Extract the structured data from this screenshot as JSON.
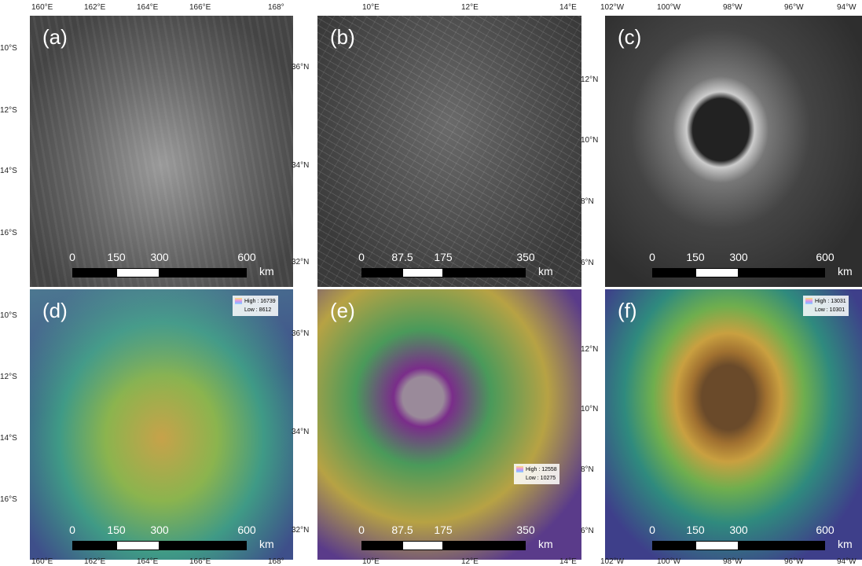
{
  "columns": [
    {
      "lon_ticks": [
        "160°E",
        "162°E",
        "164°E",
        "166°E",
        "168°"
      ],
      "lat_ticks": [
        "10°S",
        "12°S",
        "14°S",
        "16°S"
      ],
      "scale": {
        "ticks": [
          0,
          150,
          300,
          600
        ],
        "unit": "km"
      }
    },
    {
      "lon_ticks": [
        "10°E",
        "12°E",
        "14°E"
      ],
      "lat_ticks": [
        "36°N",
        "34°N",
        "32°N"
      ],
      "scale": {
        "ticks": [
          0,
          87.5,
          175,
          350
        ],
        "unit": "km"
      }
    },
    {
      "lon_ticks": [
        "102°W",
        "100°W",
        "98°W",
        "96°W",
        "94°W"
      ],
      "lat_ticks": [
        "12°N",
        "10°N",
        "8°N",
        "6°N"
      ],
      "scale": {
        "ticks": [
          0,
          150,
          300,
          600
        ],
        "unit": "km"
      }
    }
  ],
  "panels": [
    {
      "label": "(a)"
    },
    {
      "label": "(b)"
    },
    {
      "label": "(c)"
    },
    {
      "label": "(d)",
      "legend": {
        "high": "High : 16739",
        "low": "Low : 8612"
      }
    },
    {
      "label": "(e)",
      "legend": {
        "high": "High : 12558",
        "low": "Low : 10275"
      }
    },
    {
      "label": "(f)",
      "legend": {
        "high": "High : 13031",
        "low": "Low : 10301"
      }
    }
  ]
}
